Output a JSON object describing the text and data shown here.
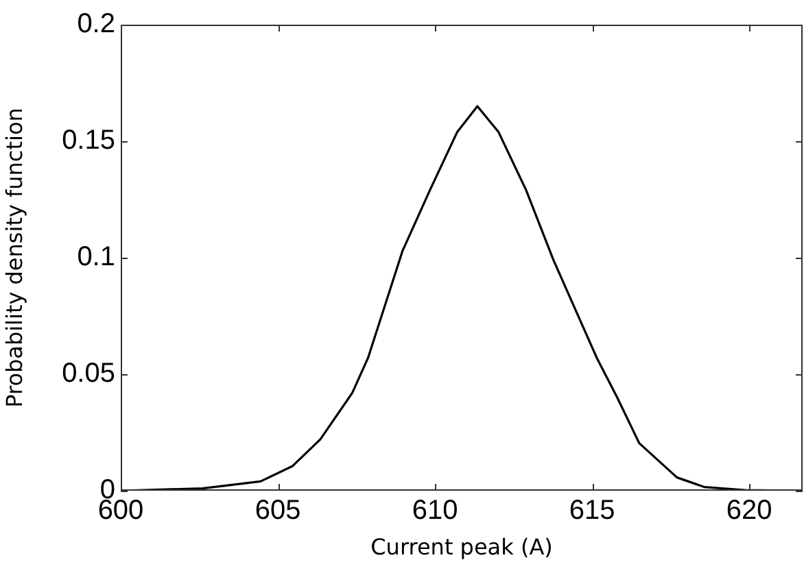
{
  "chart_data": {
    "type": "line",
    "xlabel": "Current peak (A)",
    "ylabel": "Probability density function",
    "xlim": [
      600,
      621.7
    ],
    "xticks": [
      600,
      605,
      610,
      615,
      620
    ],
    "ylim": [
      0,
      0.2
    ],
    "yticks": [
      0,
      0.05,
      0.1,
      0.15,
      0.2
    ],
    "marker": "none",
    "line_style": "solid",
    "series": [
      {
        "color": "#000000",
        "x": [
          600,
          602.6,
          604.45,
          605.47,
          606.35,
          607.37,
          607.87,
          608.97,
          609.84,
          610.71,
          611.35,
          612.02,
          612.9,
          613.77,
          615.15,
          615.8,
          616.5,
          617.7,
          618.57,
          619.87,
          621.7
        ],
        "values": [
          0,
          0.001,
          0.004,
          0.0106,
          0.022,
          0.042,
          0.057,
          0.103,
          0.129,
          0.154,
          0.165,
          0.154,
          0.129,
          0.099,
          0.057,
          0.04,
          0.0204,
          0.0057,
          0.0016,
          0.0003,
          0
        ]
      }
    ]
  }
}
